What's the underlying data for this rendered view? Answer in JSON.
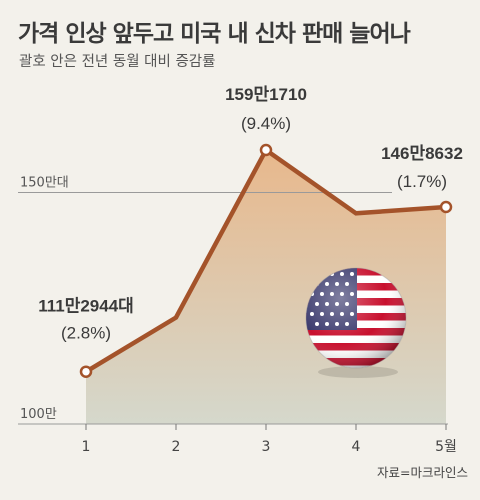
{
  "title": "가격 인상 앞두고 미국 내 신차 판매 늘어나",
  "subtitle": "괄호 안은 전년 동월 대비 증감률",
  "source": "자료=마크라인스",
  "chart_data": {
    "type": "area",
    "x": [
      "1",
      "2",
      "3",
      "4",
      "5월"
    ],
    "values": [
      1112944,
      1230000,
      1591710,
      1455000,
      1468632
    ],
    "ylim": [
      1000000,
      1650000
    ],
    "y_ticks": [
      {
        "value": 1000000,
        "label": "100만"
      },
      {
        "value": 1500000,
        "label": "150만대"
      }
    ],
    "grid": false,
    "annotations": [
      {
        "index": 0,
        "label": "111만2944대",
        "pct": "(2.8%)"
      },
      {
        "index": 2,
        "label": "159만1710",
        "pct": "(9.4%)"
      },
      {
        "index": 4,
        "label": "146만8632",
        "pct": "(1.7%)"
      }
    ],
    "colors": {
      "line": "#a4532a",
      "area_top": "#e8b88c",
      "area_bottom": "#d5d8cc",
      "marker_fill": "#ffffff"
    }
  },
  "flag_icon": "us-flag-icon"
}
